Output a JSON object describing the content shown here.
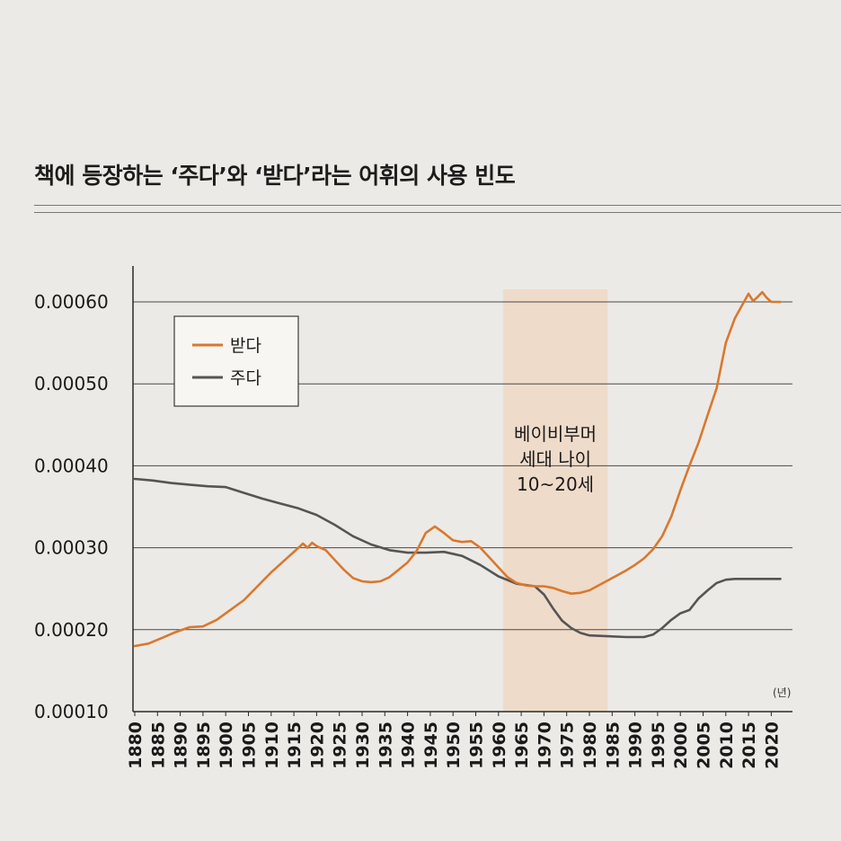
{
  "title": "책에 등장하는 ‘주다’와 ‘받다’라는 어휘의 사용 빈도",
  "chart_data": {
    "type": "line",
    "x_unit_label": "(년)",
    "x_ticks": [
      1880,
      1885,
      1890,
      1895,
      1900,
      1905,
      1910,
      1915,
      1920,
      1925,
      1930,
      1935,
      1940,
      1945,
      1950,
      1955,
      1960,
      1965,
      1970,
      1975,
      1980,
      1985,
      1990,
      1995,
      2000,
      2005,
      2010,
      2015,
      2020
    ],
    "y_ticks": [
      "0.00010",
      "0.00020",
      "0.00030",
      "0.00040",
      "0.00050",
      "0.00060"
    ],
    "ylim": [
      0.0001,
      0.00065
    ],
    "xlim": [
      1880,
      2022
    ],
    "grid": "horizontal",
    "legend_position": "top-left",
    "annotation": {
      "lines": [
        "베이비부머",
        "세대 나이",
        "10~20세"
      ],
      "x_start": 1961,
      "x_end": 1984,
      "color": "#f0d8c4"
    },
    "series": [
      {
        "name": "받다",
        "color": "#d9782f",
        "points": [
          [
            1880,
            0.00018
          ],
          [
            1883,
            0.000183
          ],
          [
            1886,
            0.00019
          ],
          [
            1889,
            0.000197
          ],
          [
            1892,
            0.000203
          ],
          [
            1895,
            0.000204
          ],
          [
            1898,
            0.000212
          ],
          [
            1901,
            0.000224
          ],
          [
            1904,
            0.000236
          ],
          [
            1907,
            0.000253
          ],
          [
            1910,
            0.00027
          ],
          [
            1913,
            0.000285
          ],
          [
            1916,
            0.0003
          ],
          [
            1917,
            0.000305
          ],
          [
            1918,
            0.0003
          ],
          [
            1919,
            0.000306
          ],
          [
            1920,
            0.000302
          ],
          [
            1922,
            0.000297
          ],
          [
            1924,
            0.000285
          ],
          [
            1926,
            0.000273
          ],
          [
            1928,
            0.000263
          ],
          [
            1930,
            0.000259
          ],
          [
            1932,
            0.000258
          ],
          [
            1934,
            0.000259
          ],
          [
            1936,
            0.000264
          ],
          [
            1938,
            0.000273
          ],
          [
            1940,
            0.000282
          ],
          [
            1942,
            0.000296
          ],
          [
            1944,
            0.000318
          ],
          [
            1946,
            0.000326
          ],
          [
            1948,
            0.000318
          ],
          [
            1950,
            0.000309
          ],
          [
            1952,
            0.000307
          ],
          [
            1954,
            0.000308
          ],
          [
            1956,
            0.0003
          ],
          [
            1958,
            0.000288
          ],
          [
            1960,
            0.000276
          ],
          [
            1962,
            0.000264
          ],
          [
            1964,
            0.000257
          ],
          [
            1966,
            0.000254
          ],
          [
            1968,
            0.000253
          ],
          [
            1970,
            0.000253
          ],
          [
            1972,
            0.000251
          ],
          [
            1974,
            0.000247
          ],
          [
            1976,
            0.000244
          ],
          [
            1978,
            0.000245
          ],
          [
            1980,
            0.000248
          ],
          [
            1982,
            0.000254
          ],
          [
            1984,
            0.00026
          ],
          [
            1986,
            0.000266
          ],
          [
            1988,
            0.000272
          ],
          [
            1990,
            0.000279
          ],
          [
            1992,
            0.000287
          ],
          [
            1994,
            0.000298
          ],
          [
            1996,
            0.000314
          ],
          [
            1998,
            0.000338
          ],
          [
            2000,
            0.00037
          ],
          [
            2002,
            0.0004
          ],
          [
            2004,
            0.000428
          ],
          [
            2006,
            0.000462
          ],
          [
            2008,
            0.000495
          ],
          [
            2010,
            0.00055
          ],
          [
            2012,
            0.00058
          ],
          [
            2014,
            0.0006
          ],
          [
            2015,
            0.00061
          ],
          [
            2016,
            0.000601
          ],
          [
            2017,
            0.000606
          ],
          [
            2018,
            0.000612
          ],
          [
            2019,
            0.000605
          ],
          [
            2020,
            0.0006
          ],
          [
            2022,
            0.0006
          ]
        ]
      },
      {
        "name": "주다",
        "color": "#555555",
        "points": [
          [
            1880,
            0.000384
          ],
          [
            1884,
            0.000382
          ],
          [
            1888,
            0.000379
          ],
          [
            1892,
            0.000377
          ],
          [
            1896,
            0.000375
          ],
          [
            1900,
            0.000374
          ],
          [
            1904,
            0.000367
          ],
          [
            1908,
            0.00036
          ],
          [
            1912,
            0.000354
          ],
          [
            1916,
            0.000348
          ],
          [
            1920,
            0.00034
          ],
          [
            1924,
            0.000328
          ],
          [
            1928,
            0.000314
          ],
          [
            1932,
            0.000304
          ],
          [
            1936,
            0.000297
          ],
          [
            1940,
            0.000294
          ],
          [
            1944,
            0.000294
          ],
          [
            1948,
            0.000295
          ],
          [
            1952,
            0.00029
          ],
          [
            1956,
            0.000279
          ],
          [
            1960,
            0.000265
          ],
          [
            1964,
            0.000256
          ],
          [
            1968,
            0.000253
          ],
          [
            1970,
            0.000243
          ],
          [
            1972,
            0.000226
          ],
          [
            1974,
            0.000211
          ],
          [
            1976,
            0.000202
          ],
          [
            1978,
            0.000196
          ],
          [
            1980,
            0.000193
          ],
          [
            1984,
            0.000192
          ],
          [
            1988,
            0.000191
          ],
          [
            1992,
            0.000191
          ],
          [
            1994,
            0.000194
          ],
          [
            1996,
            0.000202
          ],
          [
            1998,
            0.000212
          ],
          [
            2000,
            0.00022
          ],
          [
            2002,
            0.000224
          ],
          [
            2004,
            0.000238
          ],
          [
            2006,
            0.000248
          ],
          [
            2008,
            0.000257
          ],
          [
            2010,
            0.000261
          ],
          [
            2012,
            0.000262
          ],
          [
            2016,
            0.000262
          ],
          [
            2020,
            0.000262
          ],
          [
            2022,
            0.000262
          ]
        ]
      }
    ]
  }
}
